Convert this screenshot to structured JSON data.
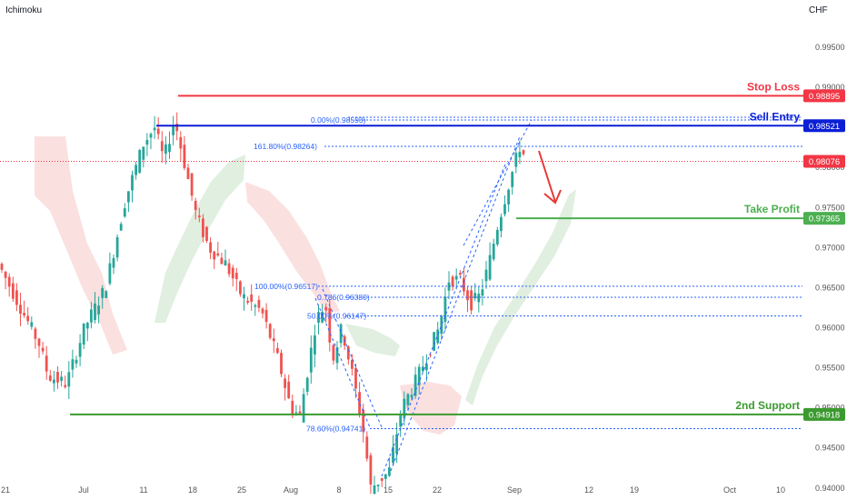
{
  "header": {
    "indicator": "Ichimoku",
    "currency": "CHF"
  },
  "colors": {
    "stop_loss": "#f23645",
    "sell_entry": "#0b1fd6",
    "take_profit": "#4caf50",
    "support": "#3b9a2f",
    "fib": "#2962ff",
    "bull": "#26a69a",
    "bear": "#ef5350",
    "kumo_bear": "#f7c6c6",
    "kumo_bull": "#d6ead6",
    "arrow": "#e53935"
  },
  "chart_data": {
    "type": "candlestick",
    "title": "",
    "xlabel": "",
    "ylabel": "",
    "ylim": [
      0.9385,
      1.0009
    ],
    "x_ticks": [
      "21",
      "Jul",
      "11",
      "18",
      "25",
      "Aug",
      "8",
      "15",
      "22",
      "Sep",
      "12",
      "19",
      "Oct",
      "10"
    ],
    "y_ticks": [
      "0.99500",
      "0.99000",
      "0.98500",
      "0.98000",
      "0.97500",
      "0.97000",
      "0.96500",
      "0.96000",
      "0.95500",
      "0.95000",
      "0.94500",
      "0.94000"
    ],
    "levels": [
      {
        "name": "Stop Loss",
        "value": 0.98895,
        "label": "0.98895",
        "color": "#f23645"
      },
      {
        "name": "Sell Entry",
        "value": 0.98521,
        "label": "0.98521",
        "color": "#0b1fd6"
      },
      {
        "name": "Take Profit",
        "value": 0.97365,
        "label": "0.97365",
        "color": "#4caf50"
      },
      {
        "name": "2nd Support",
        "value": 0.94918,
        "label": "0.94918",
        "color": "#3b9a2f"
      }
    ],
    "current_price": {
      "value": 0.98076,
      "label": "0.98076"
    },
    "fib_labels": [
      {
        "text": "0.00%(0.98593)",
        "value": 0.98593
      },
      {
        "text": "161.80%(0.98264)",
        "value": 0.98264
      },
      {
        "text": "100.00%(0.96517)",
        "value": 0.96517
      },
      {
        "text": "0.786(0.96380)",
        "value": 0.9638
      },
      {
        "text": "50.00%(0.96147)",
        "value": 0.96147
      },
      {
        "text": "78.60%(0.94741)",
        "value": 0.94741
      }
    ],
    "price_path": [
      [
        0,
        0.968
      ],
      [
        45,
        0.958
      ],
      [
        55,
        0.954
      ],
      [
        75,
        0.953
      ],
      [
        95,
        0.96
      ],
      [
        118,
        0.965
      ],
      [
        140,
        0.976
      ],
      [
        160,
        0.983
      ],
      [
        172,
        0.985
      ],
      [
        182,
        0.981
      ],
      [
        194,
        0.986
      ],
      [
        206,
        0.98
      ],
      [
        218,
        0.974
      ],
      [
        232,
        0.97
      ],
      [
        250,
        0.968
      ],
      [
        268,
        0.964
      ],
      [
        290,
        0.962
      ],
      [
        308,
        0.956
      ],
      [
        322,
        0.95
      ],
      [
        332,
        0.949
      ],
      [
        350,
        0.961
      ],
      [
        360,
        0.963
      ],
      [
        368,
        0.956
      ],
      [
        378,
        0.96
      ],
      [
        392,
        0.953
      ],
      [
        402,
        0.947
      ],
      [
        410,
        0.94
      ],
      [
        420,
        0.941
      ],
      [
        430,
        0.942
      ],
      [
        444,
        0.95
      ],
      [
        458,
        0.953
      ],
      [
        470,
        0.956
      ],
      [
        485,
        0.96
      ],
      [
        496,
        0.966
      ],
      [
        508,
        0.966
      ],
      [
        520,
        0.963
      ],
      [
        530,
        0.964
      ],
      [
        540,
        0.968
      ],
      [
        550,
        0.973
      ],
      [
        562,
        0.978
      ],
      [
        575,
        0.983
      ],
      [
        580,
        0.9808
      ]
    ]
  }
}
